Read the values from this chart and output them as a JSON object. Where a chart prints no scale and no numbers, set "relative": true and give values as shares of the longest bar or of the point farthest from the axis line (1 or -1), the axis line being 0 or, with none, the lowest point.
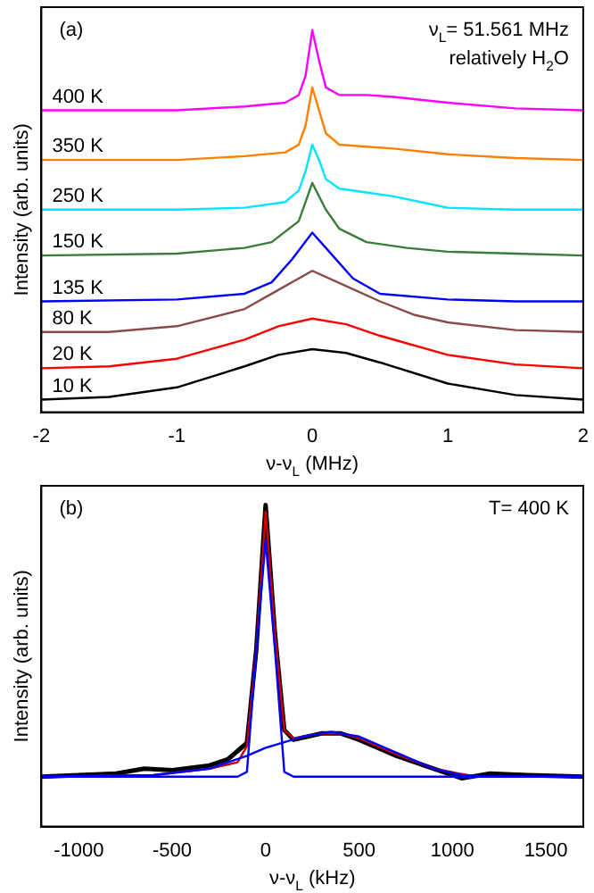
{
  "chart_data": [
    {
      "type": "line",
      "xlabel": "ν-ν$_{L}$ (MHz)",
      "ylabel": "Intensity (arb. units)",
      "relative": true,
      "xlim": [
        -2,
        2
      ],
      "xticks": [
        -2,
        -1,
        0,
        1,
        2
      ],
      "grid": false,
      "legend": false,
      "marker": "none",
      "annotations": [
        "(a)",
        "ν$_{L}$= 51.561 MHz",
        "relatively H$_{2}$O"
      ],
      "series": [
        {
          "name": "400 K",
          "color": "#ff00ff",
          "x": [
            -2,
            -1,
            -0.5,
            -0.2,
            -0.1,
            -0.05,
            0,
            0.05,
            0.1,
            0.2,
            0.4,
            0.6,
            1,
            1.5,
            2
          ],
          "values": [
            0.79,
            0.79,
            0.8,
            0.81,
            0.83,
            0.88,
            1.0,
            0.92,
            0.85,
            0.83,
            0.83,
            0.825,
            0.81,
            0.795,
            0.79
          ]
        },
        {
          "name": "350 K",
          "color": "#ff8000",
          "x": [
            -2,
            -1,
            -0.5,
            -0.2,
            -0.1,
            -0.05,
            0,
            0.05,
            0.1,
            0.2,
            0.4,
            0.6,
            1,
            1.5,
            2
          ],
          "values": [
            0.66,
            0.66,
            0.67,
            0.68,
            0.7,
            0.75,
            0.85,
            0.79,
            0.73,
            0.7,
            0.695,
            0.69,
            0.675,
            0.665,
            0.66
          ]
        },
        {
          "name": "250 K",
          "color": "#00e5ff",
          "x": [
            -2,
            -1,
            -0.5,
            -0.2,
            -0.1,
            -0.05,
            0,
            0.05,
            0.1,
            0.2,
            0.4,
            0.6,
            0.8,
            1,
            1.5,
            2
          ],
          "values": [
            0.53,
            0.53,
            0.535,
            0.55,
            0.58,
            0.63,
            0.7,
            0.66,
            0.61,
            0.585,
            0.575,
            0.565,
            0.55,
            0.535,
            0.53,
            0.53
          ]
        },
        {
          "name": "150 K",
          "color": "#3a7d3a",
          "x": [
            -2,
            -1,
            -0.5,
            -0.3,
            -0.1,
            0,
            0.1,
            0.2,
            0.4,
            0.7,
            1,
            1.5,
            2
          ],
          "values": [
            0.41,
            0.415,
            0.43,
            0.445,
            0.5,
            0.6,
            0.53,
            0.48,
            0.445,
            0.43,
            0.42,
            0.415,
            0.41
          ]
        },
        {
          "name": "135 K",
          "color": "#0000ff",
          "x": [
            -2,
            -1,
            -0.5,
            -0.3,
            -0.15,
            0,
            0.15,
            0.3,
            0.5,
            1,
            1.5,
            2
          ],
          "values": [
            0.29,
            0.295,
            0.31,
            0.34,
            0.4,
            0.47,
            0.41,
            0.35,
            0.31,
            0.295,
            0.29,
            0.29
          ]
        },
        {
          "name": "80 K",
          "color": "#8b4a4a",
          "x": [
            -2,
            -1.5,
            -1,
            -0.5,
            -0.25,
            0,
            0.25,
            0.5,
            0.75,
            1,
            1.5,
            2
          ],
          "values": [
            0.21,
            0.21,
            0.225,
            0.27,
            0.32,
            0.37,
            0.33,
            0.29,
            0.255,
            0.235,
            0.215,
            0.21
          ]
        },
        {
          "name": "20 K",
          "color": "#ff0000",
          "x": [
            -2,
            -1.5,
            -1,
            -0.5,
            -0.25,
            0,
            0.25,
            0.5,
            1,
            1.5,
            2
          ],
          "values": [
            0.115,
            0.12,
            0.14,
            0.19,
            0.225,
            0.245,
            0.23,
            0.2,
            0.15,
            0.125,
            0.115
          ]
        },
        {
          "name": "10 K",
          "color": "#000000",
          "x": [
            -2,
            -1.5,
            -1,
            -0.5,
            -0.25,
            0,
            0.25,
            0.5,
            1,
            1.5,
            2
          ],
          "values": [
            0.033,
            0.04,
            0.065,
            0.12,
            0.15,
            0.165,
            0.155,
            0.13,
            0.075,
            0.045,
            0.033
          ]
        }
      ]
    },
    {
      "type": "line",
      "xlabel": "ν-ν$_{L}$ (kHz)",
      "ylabel": "Intensity (arb. units)",
      "relative": true,
      "xlim": [
        -1200,
        1700
      ],
      "xticks": [
        -1000,
        -500,
        0,
        500,
        1000,
        1500
      ],
      "grid": false,
      "legend": false,
      "marker": "none",
      "annotations": [
        "(b)",
        "T= 400 K"
      ],
      "series": [
        {
          "color": "#000000",
          "x": [
            -1200,
            -1000,
            -800,
            -650,
            -500,
            -300,
            -200,
            -100,
            -50,
            0,
            50,
            100,
            150,
            300,
            400,
            500,
            700,
            900,
            1050,
            1200,
            1400,
            1700
          ],
          "values": [
            0.155,
            0.16,
            0.165,
            0.18,
            0.175,
            0.19,
            0.21,
            0.26,
            0.55,
            1.0,
            0.6,
            0.3,
            0.27,
            0.29,
            0.29,
            0.27,
            0.22,
            0.18,
            0.15,
            0.165,
            0.16,
            0.155
          ]
        },
        {
          "color": "#cc0000",
          "x": [
            -1200,
            -600,
            -300,
            -150,
            -100,
            -50,
            0,
            50,
            100,
            150,
            300,
            400,
            500,
            700,
            900,
            1100
          ],
          "values": [
            0.155,
            0.16,
            0.18,
            0.2,
            0.25,
            0.55,
            0.98,
            0.6,
            0.3,
            0.275,
            0.29,
            0.29,
            0.275,
            0.225,
            0.18,
            0.158
          ]
        },
        {
          "color": "#0000ff",
          "x": [
            -1200,
            -150,
            -100,
            -50,
            0,
            50,
            100,
            150,
            1700
          ],
          "values": [
            0.155,
            0.155,
            0.17,
            0.55,
            0.89,
            0.55,
            0.17,
            0.155,
            0.155
          ]
        },
        {
          "color": "#0000ff",
          "x": [
            -1200,
            -600,
            -300,
            -100,
            0,
            200,
            350,
            500,
            700,
            900,
            1050,
            1200,
            1700
          ],
          "values": [
            0.155,
            0.16,
            0.18,
            0.22,
            0.245,
            0.28,
            0.295,
            0.28,
            0.23,
            0.18,
            0.16,
            0.155,
            0.155
          ]
        }
      ]
    }
  ]
}
